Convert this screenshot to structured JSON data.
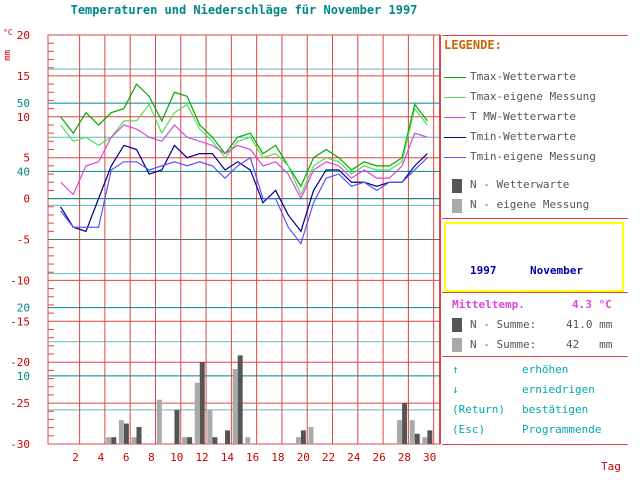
{
  "title": "Temperaturen und Niederschläge für November 1997",
  "y_unit_left": "mm",
  "y_unit_right": "°C",
  "x_unit": "Tag",
  "legend": {
    "title": "LEGENDE:",
    "entries": [
      {
        "label": "Tmax-Wetterwarte",
        "color": "#00aa00",
        "kind": "line"
      },
      {
        "label": "Tmax-eigene Messung",
        "color": "#55dd55",
        "kind": "line"
      },
      {
        "label": "T MW-Wetterwarte",
        "color": "#dd44dd",
        "kind": "line"
      },
      {
        "label": "Tmin-Wetterwarte",
        "color": "#000088",
        "kind": "line"
      },
      {
        "label": "Tmin-eigene Messung",
        "color": "#5555ff",
        "kind": "line"
      },
      {
        "label": "N - Wetterwarte",
        "color": "#555555",
        "kind": "bar"
      },
      {
        "label": "N - eigene Messung",
        "color": "#aaaaaa",
        "kind": "bar"
      }
    ]
  },
  "period": {
    "year": "1997",
    "month": "November"
  },
  "stats": {
    "mean_label": "Mitteltemp.",
    "mean_value": "4.3 °C",
    "sum1_label": "N - Summe:",
    "sum1_value": "41.0 mm",
    "sum2_label": "N - Summe:",
    "sum2_value": "42   mm"
  },
  "help": [
    {
      "key": "↑",
      "action": "erhöhen"
    },
    {
      "key": "↓",
      "action": "erniedrigen"
    },
    {
      "key": "(Return)",
      "action": "bestätigen"
    },
    {
      "key": "(Esc)",
      "action": "Programmende"
    }
  ],
  "colors": {
    "grid_red": "#dd4444",
    "grid_cyan": "#008888"
  },
  "chart_data": {
    "type": "line",
    "x": [
      1,
      2,
      3,
      4,
      5,
      6,
      7,
      8,
      9,
      10,
      11,
      12,
      13,
      14,
      15,
      16,
      17,
      18,
      19,
      20,
      21,
      22,
      23,
      24,
      25,
      26,
      27,
      28,
      29,
      30
    ],
    "xticks": [
      2,
      4,
      6,
      8,
      10,
      12,
      14,
      16,
      18,
      20,
      22,
      24,
      26,
      28,
      30
    ],
    "xlim": [
      0,
      31
    ],
    "ylim_temp": [
      -30,
      20
    ],
    "yticks_temp": [
      20,
      15,
      10,
      5,
      0,
      -5,
      -10,
      -15,
      -20,
      -25,
      -30
    ],
    "ylim_precip": [
      0,
      60
    ],
    "yticks_precip": [
      50,
      40,
      20,
      10
    ],
    "series": [
      {
        "name": "Tmax-Wetterwarte",
        "color": "#00aa00",
        "values": [
          10,
          8,
          10.5,
          9,
          10.5,
          11,
          14,
          12.5,
          9.5,
          13,
          12.5,
          9,
          7.5,
          5.5,
          7.5,
          8,
          5.5,
          6.5,
          4,
          1.5,
          5,
          6,
          5,
          3.5,
          4.5,
          4,
          4,
          5,
          11.5,
          9.5
        ]
      },
      {
        "name": "Tmax-eigene Messung",
        "color": "#55dd55",
        "values": [
          9,
          7,
          7.5,
          6.5,
          7.5,
          9.5,
          9.5,
          11.5,
          8,
          10.5,
          11.5,
          8.5,
          7,
          5,
          7,
          7.5,
          5,
          5.5,
          4,
          0.5,
          4,
          5,
          4.5,
          3,
          4,
          3.5,
          3.5,
          4.5,
          11,
          9
        ]
      },
      {
        "name": "T MW-Wetterwarte",
        "color": "#dd44dd",
        "values": [
          2,
          0.5,
          4,
          4.5,
          7.5,
          9,
          8.5,
          7.5,
          7,
          9,
          7.5,
          7,
          6.5,
          5.5,
          6.5,
          6,
          4,
          4.5,
          3,
          0,
          3.5,
          4.5,
          4,
          2.5,
          3.5,
          2.5,
          2.5,
          4,
          8,
          7.5
        ]
      },
      {
        "name": "Tmin-Wetterwarte",
        "color": "#000088",
        "values": [
          -1,
          -3.5,
          -4,
          0,
          4,
          6.5,
          6,
          3,
          3.5,
          6.5,
          5,
          5.5,
          5.5,
          3.5,
          4.5,
          3.5,
          -0.5,
          1,
          -2,
          -4,
          1,
          3.5,
          3.5,
          2,
          2,
          1.5,
          2,
          2,
          4,
          5.5
        ]
      },
      {
        "name": "Tmin-eigene Messung",
        "color": "#5555ff",
        "values": [
          -1.5,
          -3.5,
          -3.5,
          -3.5,
          3.5,
          4.5,
          4.5,
          3.5,
          4,
          4.5,
          4,
          4.5,
          4,
          2.5,
          4,
          5,
          0,
          0,
          -3.5,
          -5.5,
          -0.5,
          2.5,
          3,
          1.5,
          2,
          1,
          2,
          2,
          3.5,
          5
        ]
      }
    ],
    "bars": [
      {
        "name": "N - Wetterwarte",
        "color": "#555555",
        "values": [
          0,
          0,
          0,
          0,
          1,
          3,
          2.5,
          0,
          0,
          5,
          1,
          12,
          1,
          2,
          13,
          0,
          0,
          0,
          0,
          2,
          0,
          0,
          0,
          0,
          0,
          0,
          0,
          6,
          1.5,
          2
        ]
      },
      {
        "name": "N - eigene Messung",
        "color": "#aaaaaa",
        "values": [
          0,
          0,
          0,
          0,
          1,
          3.5,
          1,
          0,
          6.5,
          0,
          1,
          9,
          5,
          0,
          11,
          1,
          0,
          0,
          0,
          1,
          2.5,
          0,
          0,
          0,
          0,
          0,
          0,
          3.5,
          3.5,
          1
        ]
      }
    ]
  }
}
